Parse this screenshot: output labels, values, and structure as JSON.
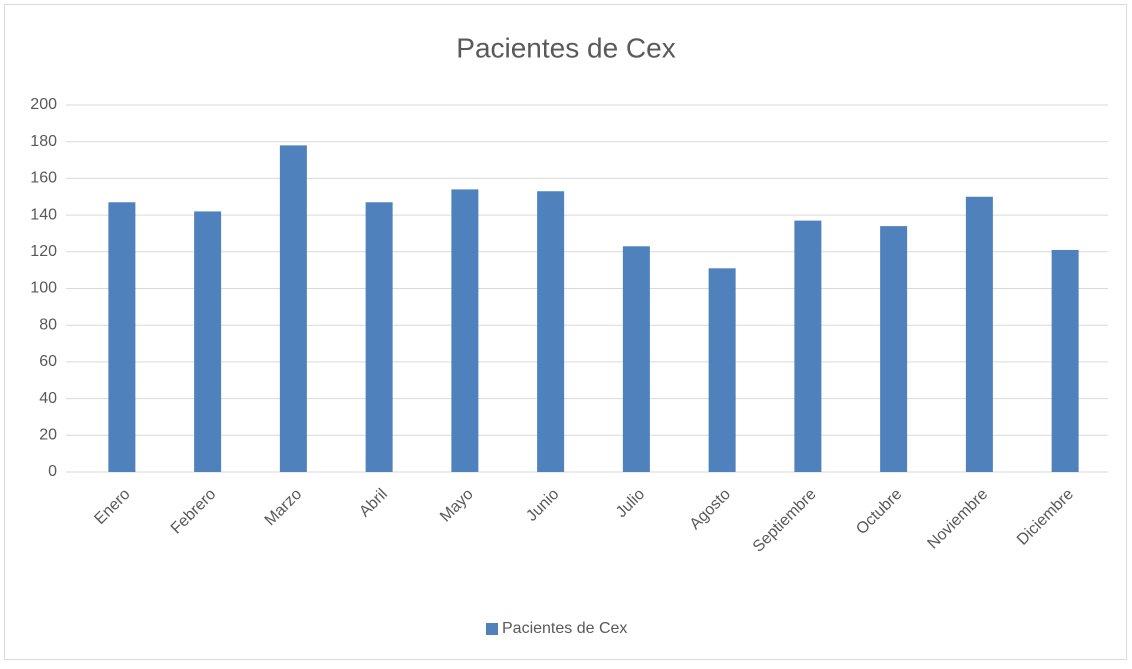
{
  "chart_data": {
    "type": "bar",
    "title": "Pacientes de Cex",
    "categories": [
      "Enero",
      "Febrero",
      "Marzo",
      "Abril",
      "Mayo",
      "Junio",
      "Julio",
      "Agosto",
      "Septiembre",
      "Octubre",
      "Noviembre",
      "Diciembre"
    ],
    "series": [
      {
        "name": "Pacientes de Cex",
        "color": "#4f81bd",
        "values": [
          147,
          142,
          178,
          147,
          154,
          153,
          123,
          111,
          137,
          134,
          150,
          121
        ]
      }
    ],
    "ylim": [
      0,
      200
    ],
    "yticks": [
      0,
      20,
      40,
      60,
      80,
      100,
      120,
      140,
      160,
      180,
      200
    ],
    "grid": true,
    "legend": "bottom"
  }
}
